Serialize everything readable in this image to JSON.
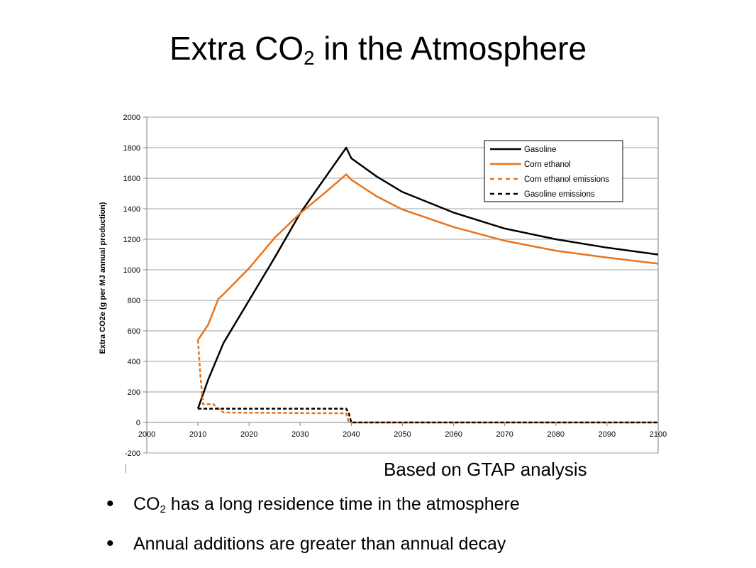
{
  "slide": {
    "title_main": "Extra CO",
    "title_sub": "2",
    "title_rest": " in the Atmosphere",
    "footnote": "Based on GTAP analysis",
    "bullets": [
      {
        "main": "CO",
        "sub": "2",
        "rest": " has a long residence time in the atmosphere"
      },
      {
        "main": "Annual additions are greater than annual decay",
        "sub": "",
        "rest": ""
      }
    ]
  },
  "chart_data": {
    "type": "line",
    "title": "",
    "ylabel": "Extra CO2e (g per MJ annual production)",
    "xlabel": "",
    "xlim": [
      2000,
      2100
    ],
    "ylim": [
      -200,
      2000
    ],
    "x_ticks": [
      "2000",
      "2010",
      "2020",
      "2030",
      "2040",
      "2050",
      "2060",
      "2070",
      "2080",
      "2090",
      "2100"
    ],
    "y_ticks": [
      "-200",
      "0",
      "200",
      "400",
      "600",
      "800",
      "1000",
      "1200",
      "1400",
      "1600",
      "1800",
      "2000"
    ],
    "grid": "horizontal",
    "legend_position": "top-right",
    "series": [
      {
        "name": "Gasoline",
        "color": "#000000",
        "style": "solid",
        "points": [
          [
            2010,
            90
          ],
          [
            2012,
            280
          ],
          [
            2015,
            520
          ],
          [
            2020,
            800
          ],
          [
            2025,
            1080
          ],
          [
            2030,
            1370
          ],
          [
            2035,
            1610
          ],
          [
            2039,
            1800
          ],
          [
            2040,
            1730
          ],
          [
            2045,
            1610
          ],
          [
            2050,
            1510
          ],
          [
            2060,
            1375
          ],
          [
            2070,
            1270
          ],
          [
            2080,
            1200
          ],
          [
            2090,
            1145
          ],
          [
            2100,
            1100
          ]
        ]
      },
      {
        "name": "Corn ethanol",
        "color": "#E8731A",
        "style": "solid",
        "points": [
          [
            2010,
            540
          ],
          [
            2012,
            640
          ],
          [
            2014,
            810
          ],
          [
            2015,
            840
          ],
          [
            2020,
            1010
          ],
          [
            2025,
            1210
          ],
          [
            2030,
            1370
          ],
          [
            2035,
            1510
          ],
          [
            2039,
            1625
          ],
          [
            2040,
            1590
          ],
          [
            2045,
            1480
          ],
          [
            2050,
            1395
          ],
          [
            2060,
            1280
          ],
          [
            2070,
            1190
          ],
          [
            2080,
            1125
          ],
          [
            2090,
            1080
          ],
          [
            2100,
            1040
          ]
        ]
      },
      {
        "name": "Corn ethanol emissions",
        "color": "#E8731A",
        "style": "dashed",
        "points": [
          [
            2010,
            540
          ],
          [
            2010.5,
            300
          ],
          [
            2011,
            120
          ],
          [
            2013,
            120
          ],
          [
            2014,
            90
          ],
          [
            2015,
            65
          ],
          [
            2038,
            60
          ],
          [
            2039,
            60
          ],
          [
            2039.5,
            0
          ],
          [
            2040,
            0
          ],
          [
            2100,
            0
          ]
        ]
      },
      {
        "name": "Gasoline emissions",
        "color": "#000000",
        "style": "dashed",
        "points": [
          [
            2010,
            90
          ],
          [
            2039,
            90
          ],
          [
            2039.5,
            60
          ],
          [
            2040,
            0
          ],
          [
            2100,
            0
          ]
        ]
      }
    ]
  }
}
